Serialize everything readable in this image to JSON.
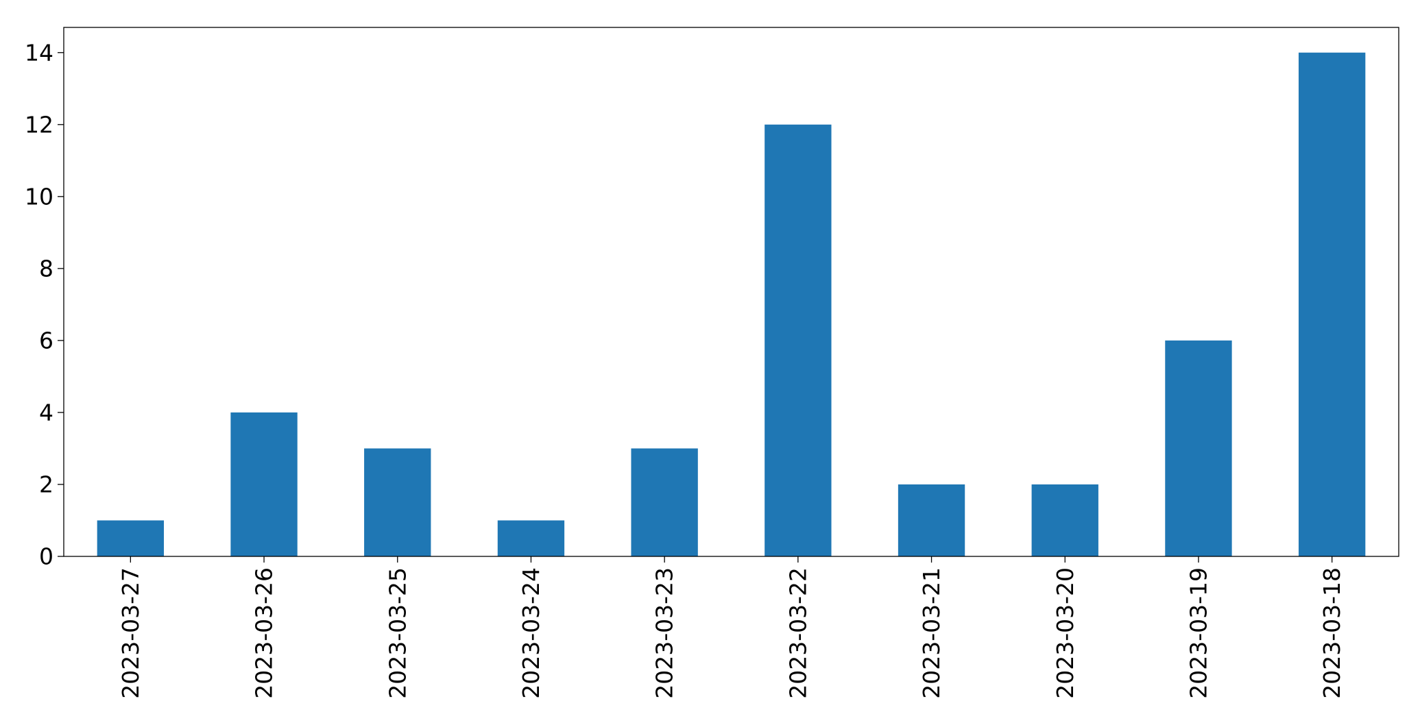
{
  "chart_data": {
    "type": "bar",
    "categories": [
      "2023-03-27",
      "2023-03-26",
      "2023-03-25",
      "2023-03-24",
      "2023-03-23",
      "2023-03-22",
      "2023-03-21",
      "2023-03-20",
      "2023-03-19",
      "2023-03-18"
    ],
    "values": [
      1,
      4,
      3,
      1,
      3,
      12,
      2,
      2,
      6,
      14
    ],
    "title": "",
    "xlabel": "",
    "ylabel": "",
    "ylim": [
      0,
      14.7
    ],
    "yticks": [
      0,
      2,
      4,
      6,
      8,
      10,
      12,
      14
    ],
    "grid": false,
    "legend": "none",
    "bar_color": "#1f77b4",
    "axis_color": "#000000",
    "xtick_rotation": "vertical"
  }
}
